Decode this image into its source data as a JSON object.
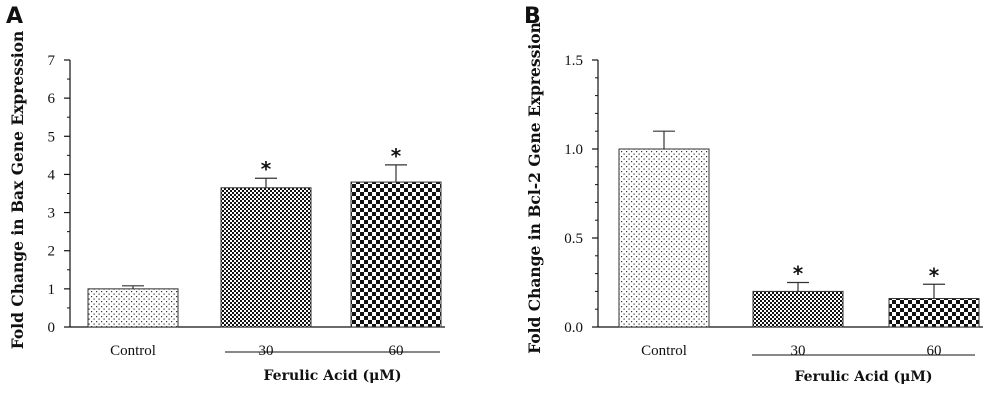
{
  "chart_data": [
    {
      "type": "bar",
      "panel": "A",
      "ylabel": "Fold Change in Bax Gene Expression",
      "ylim": [
        0,
        7
      ],
      "yticks": [
        "0",
        "1",
        "2",
        "3",
        "4",
        "5",
        "6",
        "7"
      ],
      "categories": [
        "Control",
        "30",
        "60"
      ],
      "values": [
        1.0,
        3.65,
        3.8
      ],
      "errors": [
        0.08,
        0.25,
        0.45
      ],
      "significance": [
        "",
        "*",
        "*"
      ],
      "group_label": "Ferulic Acid (μM)",
      "patterns": [
        "dots",
        "fine-check",
        "coarse-check"
      ]
    },
    {
      "type": "bar",
      "panel": "B",
      "ylabel": "Fold Change in Bcl-2 Gene Expression",
      "ylim": [
        0,
        1.5
      ],
      "yticks": [
        "0.0",
        "0.5",
        "1.0",
        "1.5"
      ],
      "categories": [
        "Control",
        "30",
        "60"
      ],
      "values": [
        1.0,
        0.2,
        0.16
      ],
      "errors": [
        0.1,
        0.05,
        0.08
      ],
      "significance": [
        "",
        "*",
        "*"
      ],
      "group_label": "Ferulic Acid (μM)",
      "patterns": [
        "dots",
        "fine-check",
        "coarse-check"
      ]
    }
  ]
}
